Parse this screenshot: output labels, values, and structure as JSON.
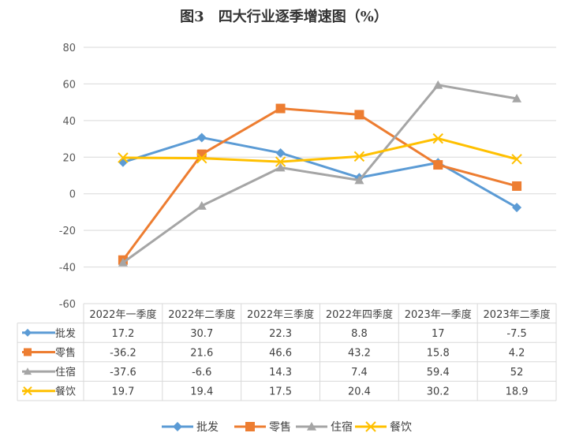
{
  "chart_data": {
    "type": "line",
    "title": "图3　四大行业逐季增速图（%）",
    "categories": [
      "2022年一季度",
      "2022年二季度",
      "2022年三季度",
      "2022年四季度",
      "2023年一季度",
      "2023年二季度"
    ],
    "series": [
      {
        "name": "批发",
        "values": [
          17.2,
          30.7,
          22.3,
          8.8,
          17,
          -7.5
        ],
        "labels": [
          "17.2",
          "30.7",
          "22.3",
          "8.8",
          "17",
          "-7.5"
        ],
        "color": "#5b9bd5",
        "marker": "diamond"
      },
      {
        "name": "零售",
        "values": [
          -36.2,
          21.6,
          46.6,
          43.2,
          15.8,
          4.2
        ],
        "labels": [
          "-36.2",
          "21.6",
          "46.6",
          "43.2",
          "15.8",
          "4.2"
        ],
        "color": "#ed7d31",
        "marker": "square"
      },
      {
        "name": "住宿",
        "values": [
          -37.6,
          -6.6,
          14.3,
          7.4,
          59.4,
          52
        ],
        "labels": [
          "-37.6",
          "-6.6",
          "14.3",
          "7.4",
          "59.4",
          "52"
        ],
        "color": "#a5a5a5",
        "marker": "triangle"
      },
      {
        "name": "餐饮",
        "values": [
          19.7,
          19.4,
          17.5,
          20.4,
          30.2,
          18.9
        ],
        "labels": [
          "19.7",
          "19.4",
          "17.5",
          "20.4",
          "30.2",
          "18.9"
        ],
        "color": "#ffc000",
        "marker": "x"
      }
    ],
    "ylim": [
      -60,
      80
    ],
    "yticks": [
      80,
      60,
      40,
      20,
      0,
      -20,
      -40,
      -60
    ],
    "ytick_labels": [
      "80",
      "60",
      "40",
      "20",
      "0",
      "-20",
      "-40",
      "-60"
    ],
    "grid": true,
    "data_table": true,
    "legend_position": "bottom"
  }
}
